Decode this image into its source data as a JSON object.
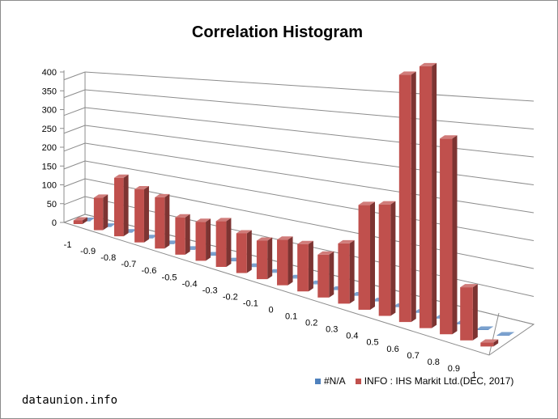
{
  "chart_data": {
    "type": "bar",
    "title": "Correlation Histogram",
    "categories": [
      "-1",
      "-0.9",
      "-0.8",
      "-0.7",
      "-0.6",
      "-0.5",
      "-0.4",
      "-0.3",
      "-0.2",
      "-0.1",
      "0",
      "0.1",
      "0.2",
      "0.3",
      "0.4",
      "0.5",
      "0.6",
      "0.7",
      "0.8",
      "0.9",
      "1"
    ],
    "series": [
      {
        "name": "#N/A",
        "color": "#4f81bd",
        "values": [
          0,
          0,
          0,
          0,
          0,
          0,
          0,
          0,
          0,
          0,
          0,
          0,
          0,
          0,
          0,
          0,
          0,
          0,
          0,
          0,
          0
        ]
      },
      {
        "name": "INFO : IHS Markit Ltd.(DEC, 2017)",
        "color": "#c0504d",
        "values": [
          10,
          85,
          145,
          125,
          115,
          80,
          80,
          90,
          75,
          70,
          80,
          80,
          70,
          95,
          160,
          165,
          355,
          365,
          265,
          70,
          5
        ]
      }
    ],
    "ylim": [
      0,
      400
    ],
    "yticks": [
      0,
      50,
      100,
      150,
      200,
      250,
      300,
      350,
      400
    ],
    "grid": true,
    "legend_position": "bottom-right"
  },
  "watermark": "dataunion.info"
}
